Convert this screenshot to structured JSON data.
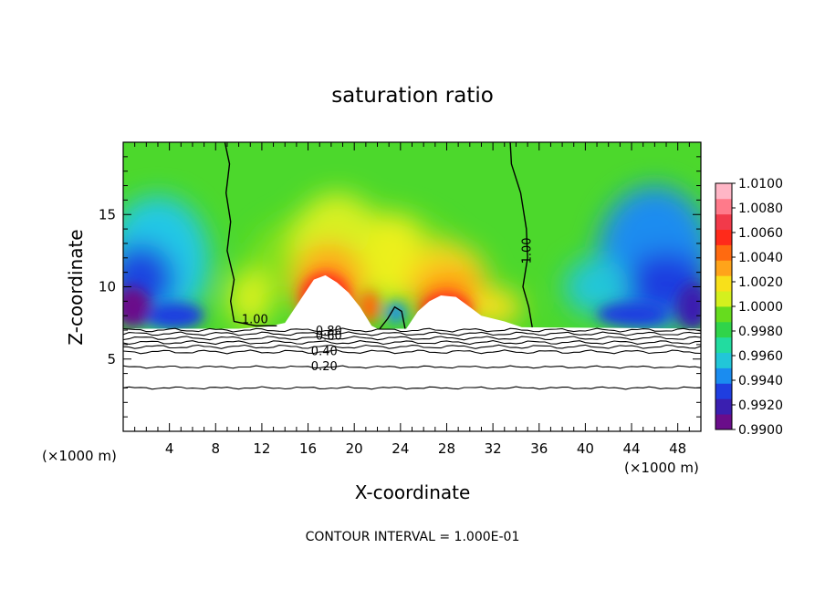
{
  "chart_data": {
    "type": "heatmap",
    "title": "saturation ratio",
    "xlabel": "X-coordinate",
    "ylabel": "Z-coordinate",
    "x_unit_label": "(×1000 m)",
    "z_unit_label": "(×1000 m)",
    "xlim": [
      0,
      50
    ],
    "ylim": [
      0,
      20
    ],
    "x_ticks": [
      "4",
      "8",
      "12",
      "16",
      "20",
      "24",
      "28",
      "32",
      "36",
      "40",
      "44",
      "48"
    ],
    "y_ticks": [
      "5",
      "10",
      "15"
    ],
    "colorbar": {
      "range": [
        0.99,
        1.01
      ],
      "labels": [
        "1.0100",
        "1.0080",
        "1.0060",
        "1.0040",
        "1.0020",
        "1.0000",
        "0.9980",
        "0.9960",
        "0.9940",
        "0.9920",
        "0.9900"
      ],
      "colors": [
        "#6a0d8a",
        "#3a1fb0",
        "#1f3ee0",
        "#1a8cf0",
        "#22c6d8",
        "#22dca0",
        "#30d44a",
        "#66dc1e",
        "#d4f01e",
        "#f8e01a",
        "#ffa41a",
        "#ff6a10",
        "#ff2a1a",
        "#f23a4a",
        "#ff7a8a",
        "#ffb6c6"
      ]
    },
    "contour_labels": [
      {
        "text": "1.00",
        "x": 11.4,
        "z": 7.7
      },
      {
        "text": "1.00",
        "x": 35.0,
        "z": 12.5
      },
      {
        "text": "0.80",
        "x": 17.8,
        "z": 6.9
      },
      {
        "text": "0.60",
        "x": 17.8,
        "z": 6.55
      },
      {
        "text": "0.40",
        "x": 17.4,
        "z": 5.5
      },
      {
        "text": "0.20",
        "x": 17.4,
        "z": 4.45
      }
    ],
    "contour_levels_below_cloud_base": [
      0.2,
      0.4,
      0.6,
      0.8
    ],
    "note": "CONTOUR INTERVAL = 1.000E-01"
  }
}
